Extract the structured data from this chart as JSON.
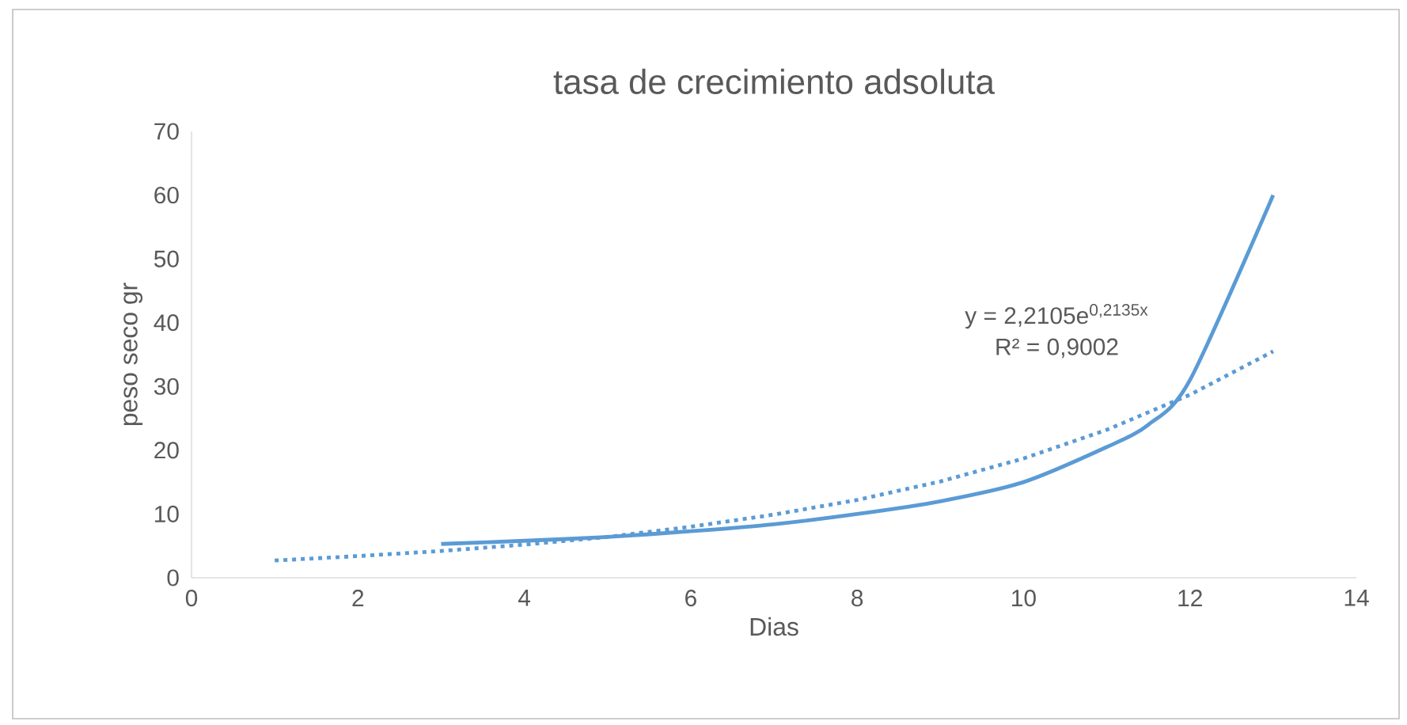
{
  "chart_data": {
    "type": "line",
    "title": "tasa de crecimiento adsoluta",
    "xlabel": "Dias",
    "ylabel": "peso seco gr",
    "xlim": [
      0,
      14
    ],
    "xticks": [
      0,
      2,
      4,
      6,
      8,
      10,
      12,
      14
    ],
    "ylim": [
      0,
      70
    ],
    "yticks": [
      0,
      10,
      20,
      30,
      40,
      50,
      60,
      70
    ],
    "series": [
      {
        "color": "#5b9bd5",
        "line_style": "solid",
        "x": [
          3,
          4,
          5,
          6,
          7,
          8,
          9,
          10,
          11,
          11.5,
          12,
          13
        ],
        "values": [
          5.3,
          5.8,
          6.4,
          7.3,
          8.4,
          10,
          12,
          15,
          20.5,
          24,
          31,
          60
        ]
      },
      {
        "color": "#5b9bd5",
        "line_style": "dotted",
        "x": [
          1,
          2,
          3,
          4,
          5,
          6,
          7,
          8,
          9,
          10,
          11,
          12,
          13
        ],
        "values": [
          2.7,
          3.4,
          4.2,
          5.2,
          6.4,
          8,
          9.9,
          12.2,
          15.1,
          18.7,
          23.2,
          28.7,
          35.5
        ]
      }
    ],
    "annotations": [
      "y = 2,2105e$^{0,2135x}$",
      "R² = 0,9002"
    ]
  }
}
